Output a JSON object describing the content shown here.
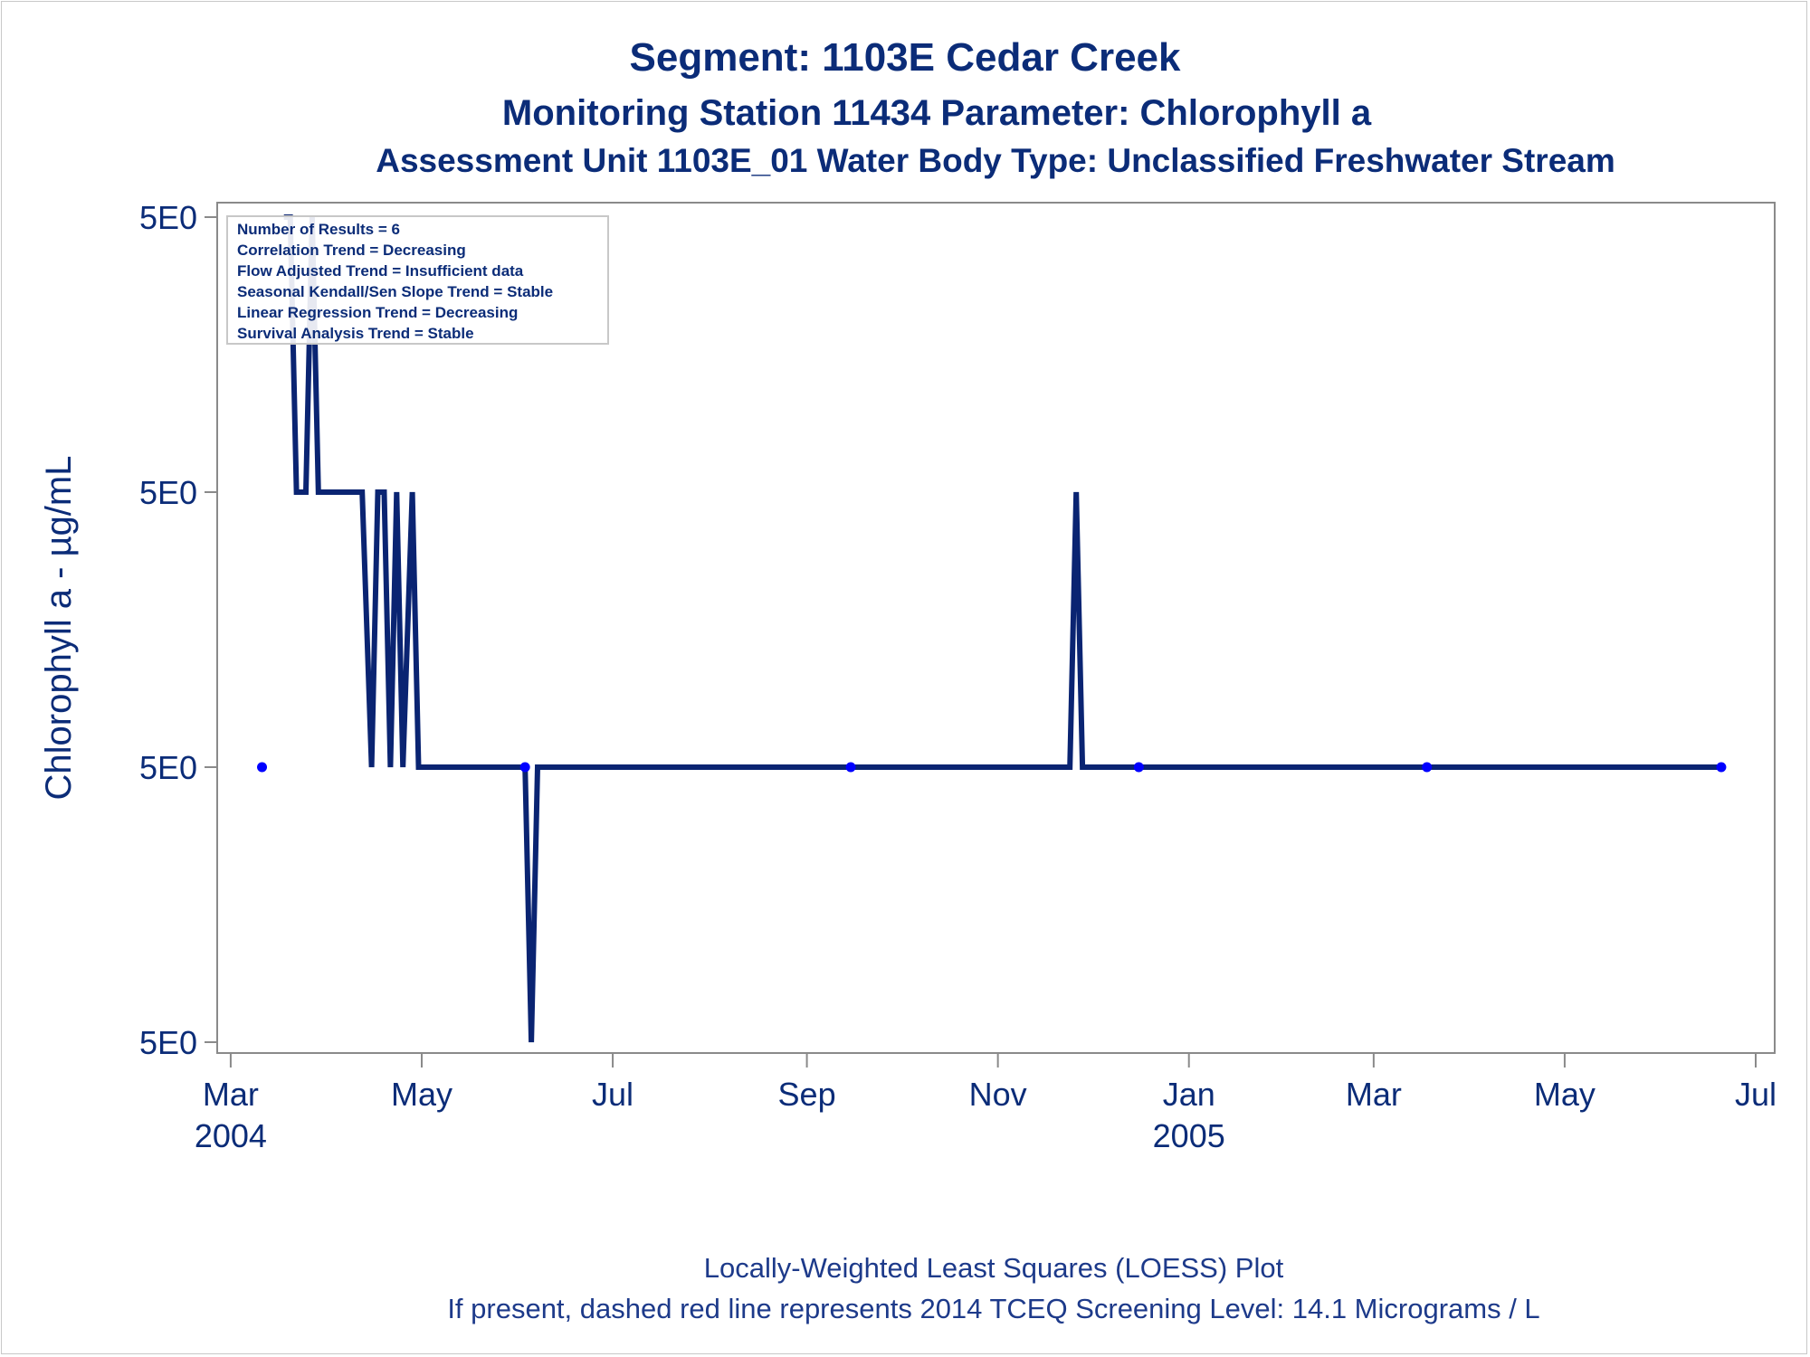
{
  "title": "Segment: 1103E  Cedar Creek",
  "subtitle1": "Monitoring Station 11434 Parameter: Chlorophyll a",
  "subtitle2": "Assessment Unit 1103E_01   Water Body Type: Unclassified Freshwater Stream",
  "footnote1": "Locally-Weighted Least Squares (LOESS) Plot",
  "footnote2": "If present, dashed red line represents 2014 TCEQ Screening Level: 14.1 Micrograms / L",
  "stats": [
    "Number of Results = 6",
    "Correlation Trend = Decreasing",
    "Flow Adjusted Trend = Insufficient data",
    "Seasonal Kendall/Sen Slope Trend = Stable",
    "Linear Regression Trend = Decreasing",
    "Survival Analysis Trend = Stable"
  ],
  "colors": {
    "text": "#0b2c78",
    "line": "#0a2472",
    "point": "#0000ff",
    "axis": "#8a8a8a"
  },
  "chart_data": {
    "type": "line",
    "ylabel": "Chlorophyll a -  µg/mL",
    "xlabel": "",
    "x_range": [
      "2004-02-28",
      "2005-07-01"
    ],
    "x_ticks": [
      {
        "date": "2004-03-01",
        "label": "Mar",
        "year": "2004"
      },
      {
        "date": "2004-05-01",
        "label": "May",
        "year": ""
      },
      {
        "date": "2004-07-01",
        "label": "Jul",
        "year": ""
      },
      {
        "date": "2004-09-01",
        "label": "Sep",
        "year": ""
      },
      {
        "date": "2004-11-01",
        "label": "Nov",
        "year": ""
      },
      {
        "date": "2005-01-01",
        "label": "Jan",
        "year": "2005"
      },
      {
        "date": "2005-03-01",
        "label": "Mar",
        "year": ""
      },
      {
        "date": "2005-05-01",
        "label": "May",
        "year": ""
      },
      {
        "date": "2005-07-01",
        "label": "Jul",
        "year": ""
      }
    ],
    "y_ticks": [
      {
        "level": 3,
        "label": "5E0"
      },
      {
        "level": 2,
        "label": "5E0"
      },
      {
        "level": 1,
        "label": "5E0"
      },
      {
        "level": 0,
        "label": "5E0"
      }
    ],
    "y_range": [
      0,
      3
    ],
    "grid": false,
    "points": [
      {
        "x": "2004-03-11",
        "y": 1
      },
      {
        "x": "2004-06-03",
        "y": 1
      },
      {
        "x": "2004-09-15",
        "y": 1
      },
      {
        "x": "2004-12-16",
        "y": 1
      },
      {
        "x": "2005-03-18",
        "y": 1
      },
      {
        "x": "2005-06-20",
        "y": 1
      }
    ],
    "loess_line": [
      {
        "x": "2004-03-18",
        "y": 3
      },
      {
        "x": "2004-03-20",
        "y": 3
      },
      {
        "x": "2004-03-22",
        "y": 2
      },
      {
        "x": "2004-03-25",
        "y": 2
      },
      {
        "x": "2004-03-27",
        "y": 3
      },
      {
        "x": "2004-03-29",
        "y": 2
      },
      {
        "x": "2004-04-12",
        "y": 2
      },
      {
        "x": "2004-04-15",
        "y": 1
      },
      {
        "x": "2004-04-17",
        "y": 2
      },
      {
        "x": "2004-04-19",
        "y": 2
      },
      {
        "x": "2004-04-21",
        "y": 1
      },
      {
        "x": "2004-04-23",
        "y": 2
      },
      {
        "x": "2004-04-25",
        "y": 1
      },
      {
        "x": "2004-04-28",
        "y": 2
      },
      {
        "x": "2004-04-30",
        "y": 1
      },
      {
        "x": "2004-06-03",
        "y": 1
      },
      {
        "x": "2004-06-05",
        "y": 0
      },
      {
        "x": "2004-06-07",
        "y": 1
      },
      {
        "x": "2004-11-24",
        "y": 1
      },
      {
        "x": "2004-11-26",
        "y": 2
      },
      {
        "x": "2004-11-28",
        "y": 1
      },
      {
        "x": "2005-06-20",
        "y": 1
      }
    ]
  }
}
